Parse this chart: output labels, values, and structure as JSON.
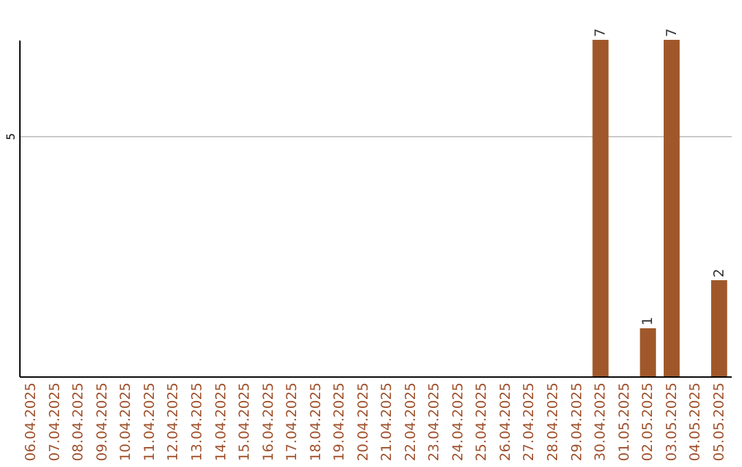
{
  "chart_data": {
    "type": "bar",
    "categories": [
      "06.04.2025",
      "07.04.2025",
      "08.04.2025",
      "09.04.2025",
      "10.04.2025",
      "11.04.2025",
      "12.04.2025",
      "13.04.2025",
      "14.04.2025",
      "15.04.2025",
      "16.04.2025",
      "17.04.2025",
      "18.04.2025",
      "19.04.2025",
      "20.04.2025",
      "21.04.2025",
      "22.04.2025",
      "23.04.2025",
      "24.04.2025",
      "25.04.2025",
      "26.04.2025",
      "27.04.2025",
      "28.04.2025",
      "29.04.2025",
      "30.04.2025",
      "01.05.2025",
      "02.05.2025",
      "03.05.2025",
      "04.05.2025",
      "05.05.2025"
    ],
    "values": [
      null,
      null,
      null,
      null,
      null,
      null,
      null,
      null,
      null,
      null,
      null,
      null,
      null,
      null,
      null,
      null,
      null,
      null,
      null,
      null,
      null,
      null,
      null,
      null,
      7,
      null,
      1,
      7,
      null,
      2
    ],
    "color": "#a0582a",
    "ylim": [
      0,
      7
    ],
    "yticks": [
      5
    ],
    "grid": "y",
    "data_labels": true
  }
}
